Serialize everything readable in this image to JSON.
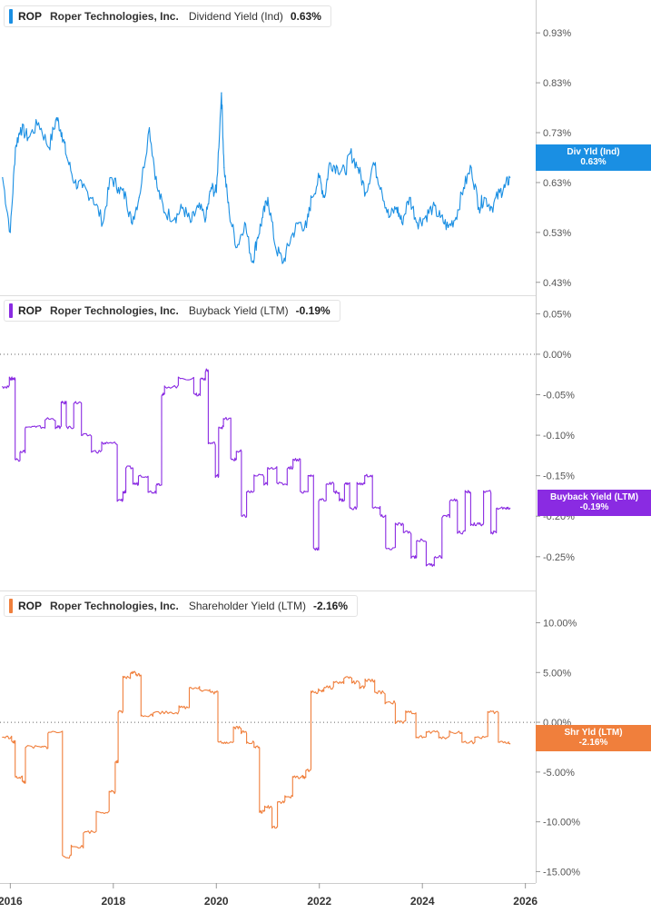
{
  "colors": {
    "dividend": "#1a8fe3",
    "buyback": "#8a2be2",
    "shareholder": "#f07f3c",
    "grid": "#dddddd",
    "zero": "#666666"
  },
  "chart_data": [
    {
      "type": "line",
      "title": "Dividend Yield (Ind)",
      "ticker": "ROP",
      "company": "Roper Technologies, Inc.",
      "legend_value": "0.63%",
      "flag_label": "Div Yld (Ind)",
      "flag_value": "0.63%",
      "ylim": [
        0.415,
        0.985
      ],
      "yticks": [
        0.93,
        0.83,
        0.73,
        0.63,
        0.53,
        0.43
      ],
      "ytick_labels": [
        "0.93%",
        "0.83%",
        "0.73%",
        "0.63%",
        "0.53%",
        "0.43%"
      ],
      "zero_line": false,
      "x": [
        2015.85,
        2016.0,
        2016.1,
        2016.2,
        2016.35,
        2016.55,
        2016.75,
        2016.9,
        2017.0,
        2017.1,
        2017.25,
        2017.4,
        2017.6,
        2017.8,
        2017.95,
        2018.1,
        2018.25,
        2018.35,
        2018.5,
        2018.7,
        2018.85,
        2019.0,
        2019.2,
        2019.35,
        2019.5,
        2019.65,
        2019.8,
        2019.9,
        2020.0,
        2020.1,
        2020.15,
        2020.25,
        2020.4,
        2020.55,
        2020.7,
        2020.8,
        2020.9,
        2021.0,
        2021.15,
        2021.3,
        2021.45,
        2021.6,
        2021.75,
        2021.85,
        2022.0,
        2022.1,
        2022.2,
        2022.35,
        2022.5,
        2022.6,
        2022.75,
        2022.9,
        2023.05,
        2023.2,
        2023.35,
        2023.5,
        2023.6,
        2023.75,
        2023.9,
        2024.05,
        2024.2,
        2024.35,
        2024.5,
        2024.65,
        2024.8,
        2024.95,
        2025.1,
        2025.2,
        2025.35,
        2025.5,
        2025.6,
        2025.7
      ],
      "values": [
        0.64,
        0.53,
        0.7,
        0.74,
        0.72,
        0.75,
        0.7,
        0.76,
        0.73,
        0.68,
        0.63,
        0.62,
        0.6,
        0.55,
        0.64,
        0.62,
        0.6,
        0.55,
        0.6,
        0.74,
        0.62,
        0.57,
        0.56,
        0.58,
        0.55,
        0.58,
        0.56,
        0.62,
        0.61,
        0.81,
        0.66,
        0.57,
        0.5,
        0.55,
        0.47,
        0.52,
        0.56,
        0.6,
        0.5,
        0.47,
        0.52,
        0.55,
        0.54,
        0.6,
        0.64,
        0.6,
        0.67,
        0.66,
        0.65,
        0.69,
        0.66,
        0.61,
        0.67,
        0.62,
        0.56,
        0.58,
        0.55,
        0.6,
        0.55,
        0.56,
        0.58,
        0.56,
        0.54,
        0.56,
        0.62,
        0.66,
        0.58,
        0.6,
        0.58,
        0.61,
        0.62,
        0.64
      ]
    },
    {
      "type": "line",
      "title": "Buyback Yield (LTM)",
      "ticker": "ROP",
      "company": "Roper Technologies, Inc.",
      "legend_value": "-0.19%",
      "flag_label": "Buyback Yield (LTM)",
      "flag_value": "-0.19%",
      "ylim": [
        -0.285,
        0.065
      ],
      "yticks": [
        0.05,
        0.0,
        -0.05,
        -0.1,
        -0.15,
        -0.2,
        -0.25
      ],
      "ytick_labels": [
        "0.05%",
        "0.00%",
        "-0.05%",
        "-0.10%",
        "-0.15%",
        "-0.20%",
        "-0.25%"
      ],
      "zero_line": true,
      "x": [
        2015.85,
        2016.0,
        2016.05,
        2016.1,
        2016.2,
        2016.3,
        2016.5,
        2016.7,
        2016.9,
        2017.0,
        2017.1,
        2017.25,
        2017.4,
        2017.6,
        2017.8,
        2017.9,
        2018.1,
        2018.2,
        2018.25,
        2018.4,
        2018.5,
        2018.7,
        2018.85,
        2018.95,
        2019.0,
        2019.3,
        2019.6,
        2019.7,
        2019.8,
        2019.85,
        2020.0,
        2020.05,
        2020.15,
        2020.3,
        2020.4,
        2020.5,
        2020.6,
        2020.75,
        2020.95,
        2021.0,
        2021.2,
        2021.4,
        2021.5,
        2021.65,
        2021.8,
        2021.9,
        2022.0,
        2022.15,
        2022.3,
        2022.4,
        2022.5,
        2022.6,
        2022.75,
        2022.9,
        2023.05,
        2023.2,
        2023.3,
        2023.5,
        2023.65,
        2023.8,
        2023.9,
        2024.1,
        2024.25,
        2024.4,
        2024.55,
        2024.7,
        2024.85,
        2024.95,
        2025.1,
        2025.2,
        2025.35,
        2025.45,
        2025.6,
        2025.7
      ],
      "values": [
        -0.04,
        -0.03,
        -0.03,
        -0.13,
        -0.12,
        -0.09,
        -0.09,
        -0.08,
        -0.09,
        -0.06,
        -0.09,
        -0.06,
        -0.1,
        -0.12,
        -0.11,
        -0.11,
        -0.18,
        -0.17,
        -0.14,
        -0.16,
        -0.15,
        -0.17,
        -0.16,
        -0.05,
        -0.04,
        -0.03,
        -0.05,
        -0.03,
        -0.02,
        -0.11,
        -0.15,
        -0.09,
        -0.08,
        -0.13,
        -0.12,
        -0.2,
        -0.17,
        -0.15,
        -0.16,
        -0.14,
        -0.16,
        -0.14,
        -0.13,
        -0.17,
        -0.15,
        -0.24,
        -0.18,
        -0.16,
        -0.17,
        -0.18,
        -0.16,
        -0.19,
        -0.16,
        -0.15,
        -0.19,
        -0.2,
        -0.24,
        -0.21,
        -0.22,
        -0.25,
        -0.23,
        -0.26,
        -0.25,
        -0.2,
        -0.18,
        -0.22,
        -0.17,
        -0.21,
        -0.21,
        -0.17,
        -0.22,
        -0.19,
        -0.19,
        -0.19
      ]
    },
    {
      "type": "line",
      "title": "Shareholder Yield (LTM)",
      "ticker": "ROP",
      "company": "Roper Technologies, Inc.",
      "legend_value": "-2.16%",
      "flag_label": "Shr Yld (LTM)",
      "flag_value": "-2.16%",
      "ylim": [
        -15.6,
        12.6
      ],
      "yticks": [
        10,
        5,
        0,
        -5,
        -10,
        -15
      ],
      "ytick_labels": [
        "10.00%",
        "5.00%",
        "0.00%",
        "-5.00%",
        "-10.00%",
        "-15.00%"
      ],
      "zero_line": true,
      "x": [
        2015.85,
        2016.05,
        2016.1,
        2016.25,
        2016.3,
        2016.6,
        2016.75,
        2017.05,
        2017.2,
        2017.45,
        2017.7,
        2017.95,
        2018.05,
        2018.1,
        2018.2,
        2018.35,
        2018.45,
        2018.55,
        2018.8,
        2019.1,
        2019.3,
        2019.5,
        2019.7,
        2019.9,
        2020.05,
        2020.2,
        2020.35,
        2020.5,
        2020.6,
        2020.75,
        2020.85,
        2020.95,
        2021.1,
        2021.2,
        2021.35,
        2021.5,
        2021.65,
        2021.75,
        2021.85,
        2022.0,
        2022.1,
        2022.3,
        2022.5,
        2022.65,
        2022.8,
        2022.9,
        2023.1,
        2023.3,
        2023.5,
        2023.7,
        2023.9,
        2024.1,
        2024.35,
        2024.55,
        2024.8,
        2025.05,
        2025.3,
        2025.5,
        2025.7
      ],
      "values": [
        -1.5,
        -2.0,
        -5.5,
        -6.0,
        -2.5,
        -2.5,
        -1.0,
        -13.5,
        -12.5,
        -11.0,
        -9.0,
        -7.0,
        -4.0,
        1.0,
        4.5,
        5.0,
        4.8,
        0.7,
        1.0,
        1.0,
        1.5,
        3.5,
        3.2,
        3.0,
        -2.0,
        -2.0,
        -0.5,
        -1.0,
        -2.0,
        -2.5,
        -9.0,
        -8.5,
        -10.5,
        -8.0,
        -7.5,
        -5.5,
        -5.5,
        -4.8,
        3.0,
        3.2,
        3.5,
        4.0,
        4.5,
        4.0,
        3.5,
        4.2,
        3.0,
        2.0,
        0.0,
        1.0,
        -1.5,
        -1.0,
        -1.5,
        -1.0,
        -2.0,
        -1.5,
        1.0,
        -2.0,
        -2.16
      ]
    }
  ],
  "x_axis": {
    "ticks": [
      2016,
      2018,
      2020,
      2022,
      2024,
      2026
    ],
    "labels": [
      "2016",
      "2018",
      "2020",
      "2022",
      "2024",
      "2026"
    ],
    "range": [
      2015.8,
      2026.2
    ]
  }
}
